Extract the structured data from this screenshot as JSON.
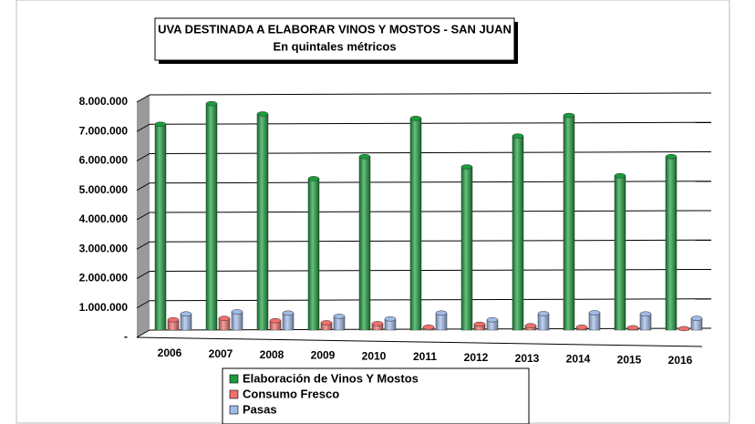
{
  "chart_data": {
    "type": "bar",
    "title": "UVA DESTINADA A ELABORAR VINOS Y MOSTOS - SAN JUAN",
    "subtitle": "En quintales métricos",
    "categories": [
      "2006",
      "2007",
      "2008",
      "2009",
      "2010",
      "2011",
      "2012",
      "2013",
      "2014",
      "2015",
      "2016"
    ],
    "series": [
      {
        "name": "Elaboración de Vinos Y Mostos",
        "color": "#1a9c3c",
        "values": [
          7000000,
          7700000,
          7350000,
          5150000,
          5900000,
          7200000,
          5550000,
          6600000,
          7300000,
          5250000,
          5900000
        ]
      },
      {
        "name": "Consumo Fresco",
        "color": "#f0706c",
        "values": [
          350000,
          400000,
          320000,
          250000,
          220000,
          100000,
          200000,
          150000,
          100000,
          80000,
          50000
        ]
      },
      {
        "name": "Pasas",
        "color": "#9fbbe8",
        "values": [
          550000,
          620000,
          580000,
          470000,
          380000,
          580000,
          350000,
          560000,
          590000,
          550000,
          400000
        ]
      }
    ],
    "ylim": [
      0,
      8000000
    ],
    "yticks": [
      {
        "value": 0,
        "label": "-"
      },
      {
        "value": 1000000,
        "label": "1.000.000"
      },
      {
        "value": 2000000,
        "label": "2.000.000"
      },
      {
        "value": 3000000,
        "label": "3.000.000"
      },
      {
        "value": 4000000,
        "label": "4.000.000"
      },
      {
        "value": 5000000,
        "label": "5.000.000"
      },
      {
        "value": 6000000,
        "label": "6.000.000"
      },
      {
        "value": 7000000,
        "label": "7.000.000"
      },
      {
        "value": 8000000,
        "label": "8.000.000"
      }
    ],
    "grid": true,
    "legend": "bottom"
  }
}
